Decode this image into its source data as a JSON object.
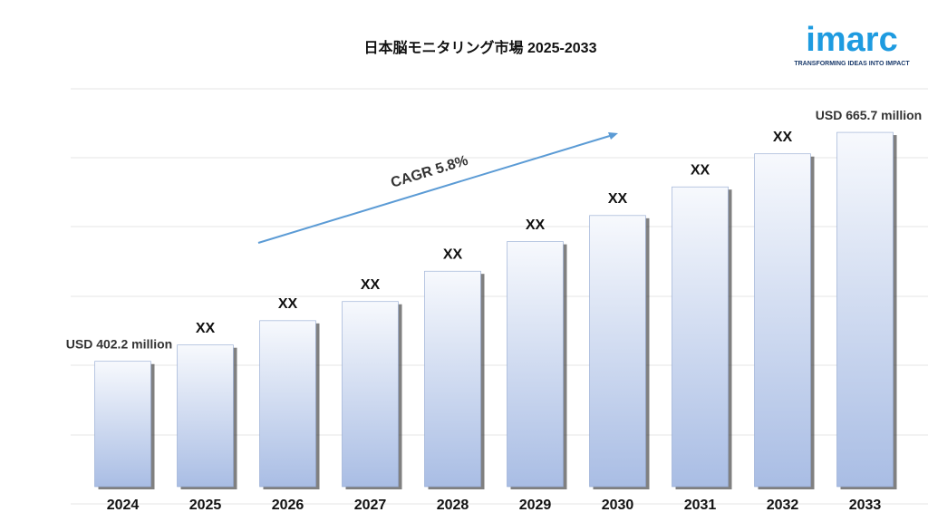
{
  "chart_data": {
    "type": "bar",
    "title": "日本脳モニタリング市場 2025-2033",
    "categories": [
      "2024",
      "2025",
      "2026",
      "2027",
      "2028",
      "2029",
      "2030",
      "2031",
      "2032",
      "2033"
    ],
    "values": [
      402.2,
      421,
      449,
      471,
      506,
      540,
      570,
      603,
      641,
      665.7
    ],
    "value_labels": [
      "USD 402.2 million",
      "XX",
      "XX",
      "XX",
      "XX",
      "XX",
      "XX",
      "XX",
      "XX",
      "USD 665.7 million"
    ],
    "color": "#a9bde4",
    "ylim": [
      258,
      720
    ],
    "annotation": "CAGR 5.8%"
  },
  "logo": {
    "name": "imarc",
    "tagline": "TRANSFORMING IDEAS INTO IMPACT"
  }
}
